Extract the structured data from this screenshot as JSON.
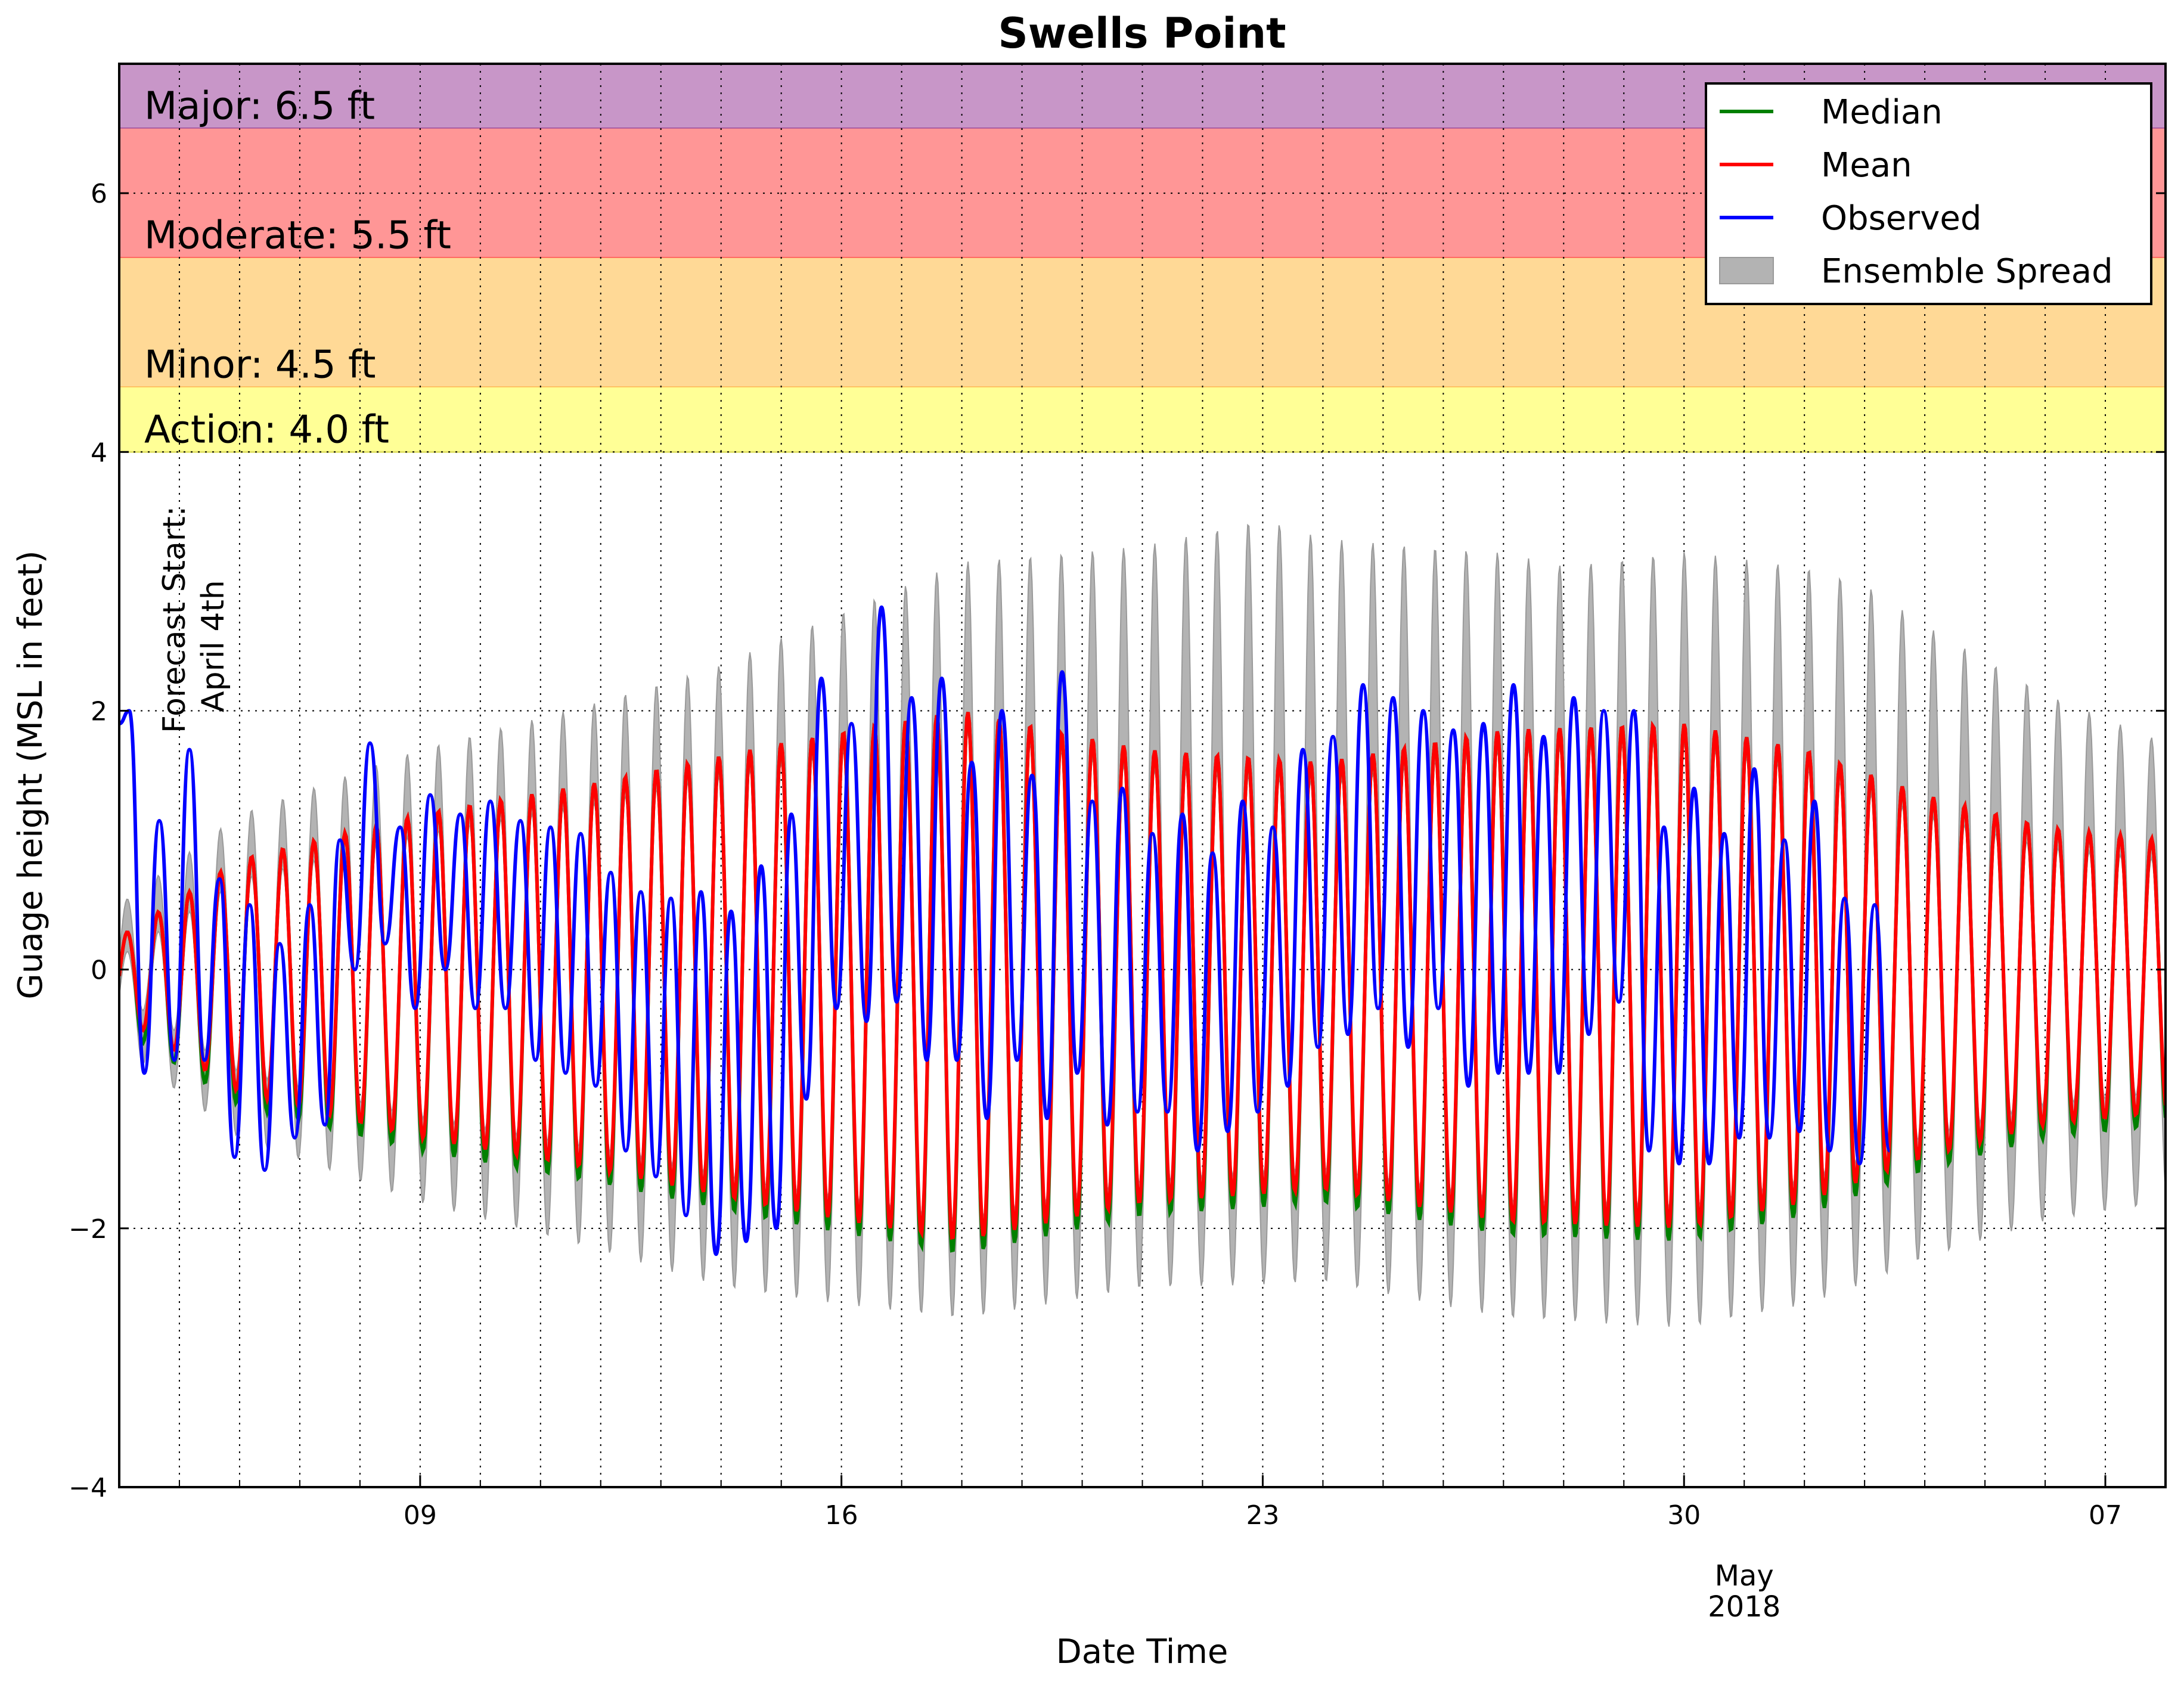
{
  "chart_data": {
    "type": "line",
    "title": "Swells Point",
    "xlabel": "Date Time",
    "ylabel": "Guage height (MSL in feet)",
    "x_range": [
      "2018-04-04 00:00",
      "2018-05-08 00:00"
    ],
    "ylim": [
      -4,
      7
    ],
    "yticks": [
      -4,
      -2,
      0,
      2,
      4,
      6
    ],
    "xticks": [
      {
        "date": "2018-04-09",
        "label": "09"
      },
      {
        "date": "2018-04-16",
        "label": "16"
      },
      {
        "date": "2018-04-23",
        "label": "23"
      },
      {
        "date": "2018-04-30",
        "label": "30"
      },
      {
        "date": "2018-05-07",
        "label": "07"
      }
    ],
    "month_label": "May",
    "year_label": "2018",
    "month_label_date": "2018-05-01",
    "grid": "dotted",
    "legend_position": "top-right",
    "legend": [
      {
        "label": "Median",
        "kind": "line",
        "color": "#008000"
      },
      {
        "label": "Mean",
        "kind": "line",
        "color": "#ff0000"
      },
      {
        "label": "Observed",
        "kind": "line",
        "color": "#0000ff"
      },
      {
        "label": "Ensemble Spread",
        "kind": "patch",
        "color": "#b3b3b3"
      }
    ],
    "flood_levels": [
      {
        "label": "Major: 6.5 ft",
        "from": 6.5,
        "to": 7.0,
        "color": "#c896c8",
        "edge": "#9b4b9b"
      },
      {
        "label": "Moderate: 5.5 ft",
        "from": 5.5,
        "to": 6.5,
        "color": "#ff9696",
        "edge": "#ff5050"
      },
      {
        "label": "Minor: 4.5 ft",
        "from": 4.5,
        "to": 5.5,
        "color": "#ffd996",
        "edge": "#ffb450"
      },
      {
        "label": "Action: 4.0 ft",
        "from": 4.0,
        "to": 4.5,
        "color": "#ffff96",
        "edge": "#e0e060"
      }
    ],
    "forecast_start": {
      "date": "2018-04-04 00:00",
      "label_line1": "Forecast Start:",
      "label_line2": "April 4th"
    },
    "series": [
      {
        "name": "Observed",
        "color": "#0000ff",
        "x_end": "2018-05-04 00:00",
        "points": [
          [
            "2018-04-04 00:00",
            1.9
          ],
          [
            "2018-04-04 04:00",
            2.0
          ],
          [
            "2018-04-04 10:00",
            -0.8
          ],
          [
            "2018-04-04 16:00",
            1.15
          ],
          [
            "2018-04-04 22:00",
            -0.7
          ],
          [
            "2018-04-05 04:00",
            1.7
          ],
          [
            "2018-04-05 10:00",
            -0.7
          ],
          [
            "2018-04-05 16:00",
            0.7
          ],
          [
            "2018-04-05 22:00",
            -1.45
          ],
          [
            "2018-04-06 04:00",
            0.5
          ],
          [
            "2018-04-06 10:00",
            -1.55
          ],
          [
            "2018-04-06 16:00",
            0.2
          ],
          [
            "2018-04-06 22:00",
            -1.3
          ],
          [
            "2018-04-07 04:00",
            0.5
          ],
          [
            "2018-04-07 10:00",
            -1.2
          ],
          [
            "2018-04-07 16:00",
            1.0
          ],
          [
            "2018-04-07 22:00",
            0.0
          ],
          [
            "2018-04-08 04:00",
            1.75
          ],
          [
            "2018-04-08 10:00",
            0.2
          ],
          [
            "2018-04-08 16:00",
            1.1
          ],
          [
            "2018-04-08 22:00",
            -0.3
          ],
          [
            "2018-04-09 04:00",
            1.35
          ],
          [
            "2018-04-09 10:00",
            0.0
          ],
          [
            "2018-04-09 16:00",
            1.2
          ],
          [
            "2018-04-09 22:00",
            -0.3
          ],
          [
            "2018-04-10 04:00",
            1.3
          ],
          [
            "2018-04-10 10:00",
            -0.3
          ],
          [
            "2018-04-10 16:00",
            1.15
          ],
          [
            "2018-04-10 22:00",
            -0.7
          ],
          [
            "2018-04-11 04:00",
            1.1
          ],
          [
            "2018-04-11 10:00",
            -0.8
          ],
          [
            "2018-04-11 16:00",
            1.05
          ],
          [
            "2018-04-11 22:00",
            -0.9
          ],
          [
            "2018-04-12 04:00",
            0.75
          ],
          [
            "2018-04-12 10:00",
            -1.4
          ],
          [
            "2018-04-12 16:00",
            0.6
          ],
          [
            "2018-04-12 22:00",
            -1.6
          ],
          [
            "2018-04-13 04:00",
            0.55
          ],
          [
            "2018-04-13 10:00",
            -1.9
          ],
          [
            "2018-04-13 16:00",
            0.6
          ],
          [
            "2018-04-13 22:00",
            -2.2
          ],
          [
            "2018-04-14 04:00",
            0.45
          ],
          [
            "2018-04-14 10:00",
            -2.1
          ],
          [
            "2018-04-14 16:00",
            0.8
          ],
          [
            "2018-04-14 22:00",
            -2.0
          ],
          [
            "2018-04-15 04:00",
            1.2
          ],
          [
            "2018-04-15 10:00",
            -1.0
          ],
          [
            "2018-04-15 16:00",
            2.25
          ],
          [
            "2018-04-15 22:00",
            -0.3
          ],
          [
            "2018-04-16 04:00",
            1.9
          ],
          [
            "2018-04-16 10:00",
            -0.4
          ],
          [
            "2018-04-16 16:00",
            2.8
          ],
          [
            "2018-04-16 22:00",
            -0.25
          ],
          [
            "2018-04-17 04:00",
            2.1
          ],
          [
            "2018-04-17 10:00",
            -0.7
          ],
          [
            "2018-04-17 16:00",
            2.25
          ],
          [
            "2018-04-17 22:00",
            -0.7
          ],
          [
            "2018-04-18 04:00",
            1.6
          ],
          [
            "2018-04-18 10:00",
            -1.15
          ],
          [
            "2018-04-18 16:00",
            2.0
          ],
          [
            "2018-04-18 22:00",
            -0.7
          ],
          [
            "2018-04-19 04:00",
            1.5
          ],
          [
            "2018-04-19 10:00",
            -1.15
          ],
          [
            "2018-04-19 16:00",
            2.3
          ],
          [
            "2018-04-19 22:00",
            -0.8
          ],
          [
            "2018-04-20 04:00",
            1.3
          ],
          [
            "2018-04-20 10:00",
            -1.2
          ],
          [
            "2018-04-20 16:00",
            1.4
          ],
          [
            "2018-04-20 22:00",
            -1.1
          ],
          [
            "2018-04-21 04:00",
            1.05
          ],
          [
            "2018-04-21 10:00",
            -1.1
          ],
          [
            "2018-04-21 16:00",
            1.2
          ],
          [
            "2018-04-21 22:00",
            -1.4
          ],
          [
            "2018-04-22 04:00",
            0.9
          ],
          [
            "2018-04-22 10:00",
            -1.25
          ],
          [
            "2018-04-22 16:00",
            1.3
          ],
          [
            "2018-04-22 22:00",
            -1.1
          ],
          [
            "2018-04-23 04:00",
            1.1
          ],
          [
            "2018-04-23 10:00",
            -0.9
          ],
          [
            "2018-04-23 16:00",
            1.7
          ],
          [
            "2018-04-23 22:00",
            -0.6
          ],
          [
            "2018-04-24 04:00",
            1.8
          ],
          [
            "2018-04-24 10:00",
            -0.5
          ],
          [
            "2018-04-24 16:00",
            2.2
          ],
          [
            "2018-04-24 22:00",
            -0.3
          ],
          [
            "2018-04-25 04:00",
            2.1
          ],
          [
            "2018-04-25 10:00",
            -0.6
          ],
          [
            "2018-04-25 16:00",
            2.0
          ],
          [
            "2018-04-25 22:00",
            -0.3
          ],
          [
            "2018-04-26 04:00",
            1.85
          ],
          [
            "2018-04-26 10:00",
            -0.9
          ],
          [
            "2018-04-26 16:00",
            1.9
          ],
          [
            "2018-04-26 22:00",
            -0.8
          ],
          [
            "2018-04-27 04:00",
            2.2
          ],
          [
            "2018-04-27 10:00",
            -0.8
          ],
          [
            "2018-04-27 16:00",
            1.8
          ],
          [
            "2018-04-27 22:00",
            -0.8
          ],
          [
            "2018-04-28 04:00",
            2.1
          ],
          [
            "2018-04-28 10:00",
            -0.5
          ],
          [
            "2018-04-28 16:00",
            2.0
          ],
          [
            "2018-04-28 22:00",
            -0.25
          ],
          [
            "2018-04-29 04:00",
            2.0
          ],
          [
            "2018-04-29 10:00",
            -1.4
          ],
          [
            "2018-04-29 16:00",
            1.1
          ],
          [
            "2018-04-29 22:00",
            -1.5
          ],
          [
            "2018-04-30 04:00",
            1.4
          ],
          [
            "2018-04-30 10:00",
            -1.5
          ],
          [
            "2018-04-30 16:00",
            1.05
          ],
          [
            "2018-04-30 22:00",
            -1.3
          ],
          [
            "2018-05-01 04:00",
            1.55
          ],
          [
            "2018-05-01 10:00",
            -1.3
          ],
          [
            "2018-05-01 16:00",
            1.0
          ],
          [
            "2018-05-01 22:00",
            -1.25
          ],
          [
            "2018-05-02 04:00",
            1.3
          ],
          [
            "2018-05-02 10:00",
            -1.4
          ],
          [
            "2018-05-02 16:00",
            0.55
          ],
          [
            "2018-05-02 22:00",
            -1.5
          ],
          [
            "2018-05-03 04:00",
            0.5
          ],
          [
            "2018-05-03 10:00",
            -1.4
          ]
        ]
      },
      {
        "name": "Mean",
        "color": "#ff0000",
        "amplitude": [
          [
            "2018-04-04 00:00",
            0.3
          ],
          [
            "2018-04-06 00:00",
            0.9
          ],
          [
            "2018-04-09 00:00",
            1.25
          ],
          [
            "2018-04-12 00:00",
            1.5
          ],
          [
            "2018-04-15 00:00",
            1.8
          ],
          [
            "2018-04-18 00:00",
            2.05
          ],
          [
            "2018-04-21 00:00",
            1.75
          ],
          [
            "2018-04-24 00:00",
            1.65
          ],
          [
            "2018-04-27 00:00",
            1.9
          ],
          [
            "2018-04-30 00:00",
            1.95
          ],
          [
            "2018-05-02 00:00",
            1.75
          ],
          [
            "2018-05-04 00:00",
            1.4
          ],
          [
            "2018-05-06 00:00",
            1.15
          ],
          [
            "2018-05-08 00:00",
            1.05
          ]
        ],
        "offset": -0.05
      },
      {
        "name": "Median",
        "color": "#008000",
        "follows": "Mean",
        "low_tide_offset": -0.1
      },
      {
        "name": "Ensemble Spread",
        "color": "#b3b3b3",
        "spread_upper": [
          [
            "2018-04-04 00:00",
            0.1
          ],
          [
            "2018-04-09 00:00",
            0.35
          ],
          [
            "2018-04-14 00:00",
            0.55
          ],
          [
            "2018-04-18 00:00",
            1.0
          ],
          [
            "2018-04-23 00:00",
            1.7
          ],
          [
            "2018-04-28 00:00",
            1.1
          ],
          [
            "2018-05-03 00:00",
            1.3
          ],
          [
            "2018-05-08 00:00",
            0.6
          ]
        ],
        "spread_lower": [
          [
            "2018-04-04 00:00",
            0.1
          ],
          [
            "2018-04-09 00:00",
            0.35
          ],
          [
            "2018-04-14 00:00",
            0.55
          ],
          [
            "2018-04-18 00:00",
            0.45
          ],
          [
            "2018-04-23 00:00",
            0.55
          ],
          [
            "2018-04-28 00:00",
            0.6
          ],
          [
            "2018-05-03 00:00",
            0.65
          ],
          [
            "2018-05-08 00:00",
            0.55
          ]
        ]
      }
    ]
  }
}
